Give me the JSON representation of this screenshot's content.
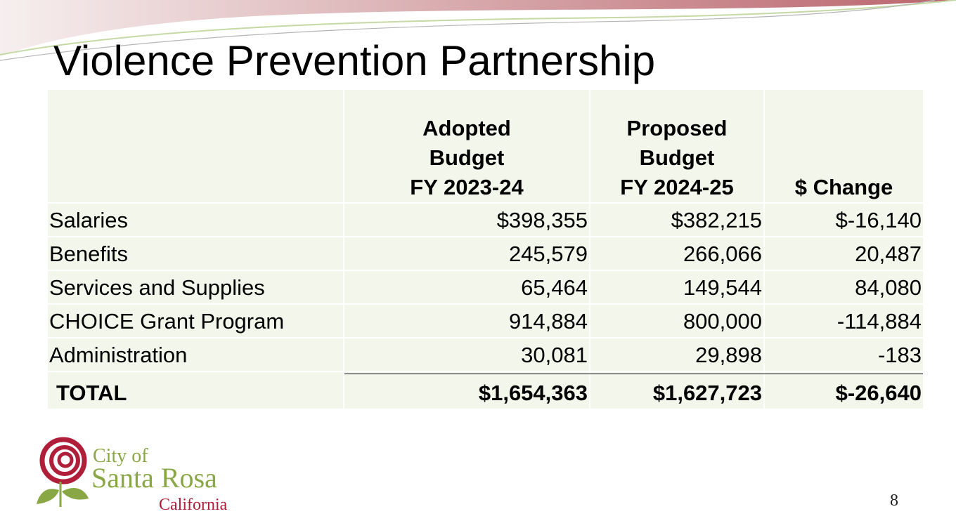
{
  "title": "Violence Prevention Partnership",
  "table": {
    "header": [
      [
        "Adopted",
        "Budget",
        "FY 2023-24"
      ],
      [
        "Proposed",
        "Budget",
        "FY 2024-25"
      ],
      [
        "$ Change"
      ]
    ],
    "rows": [
      [
        "Salaries",
        "$398,355",
        "$382,215",
        "$-16,140"
      ],
      [
        "Benefits",
        "245,579",
        "266,066",
        "20,487"
      ],
      [
        "Services and Supplies",
        "65,464",
        "149,544",
        "84,080"
      ],
      [
        "CHOICE Grant Program",
        "914,884",
        "800,000",
        "-114,884"
      ],
      [
        "Administration",
        "30,081",
        "29,898",
        "-183"
      ]
    ],
    "total": [
      "TOTAL",
      "$1,654,363",
      "$1,627,723",
      "$-26,640"
    ]
  },
  "logo": {
    "line1": "City of",
    "line2": "Santa Rosa",
    "line3": "California"
  },
  "page_number": "8"
}
